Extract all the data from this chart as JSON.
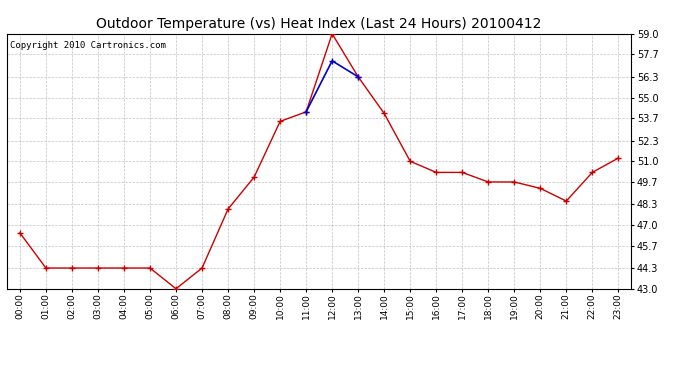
{
  "title": "Outdoor Temperature (vs) Heat Index (Last 24 Hours) 20100412",
  "copyright_text": "Copyright 2010 Cartronics.com",
  "x_labels": [
    "00:00",
    "01:00",
    "02:00",
    "03:00",
    "04:00",
    "05:00",
    "06:00",
    "07:00",
    "08:00",
    "09:00",
    "10:00",
    "11:00",
    "12:00",
    "13:00",
    "14:00",
    "15:00",
    "16:00",
    "17:00",
    "18:00",
    "19:00",
    "20:00",
    "21:00",
    "22:00",
    "23:00"
  ],
  "temp_values": [
    46.5,
    44.3,
    44.3,
    44.3,
    44.3,
    44.3,
    43.0,
    44.3,
    48.0,
    50.0,
    53.5,
    54.1,
    59.0,
    56.3,
    54.0,
    51.0,
    50.3,
    50.3,
    49.7,
    49.7,
    49.3,
    48.5,
    50.3,
    51.2
  ],
  "heat_values": [
    null,
    null,
    null,
    null,
    null,
    null,
    null,
    null,
    null,
    null,
    null,
    54.1,
    57.3,
    56.3,
    null,
    null,
    null,
    null,
    null,
    null,
    null,
    null,
    null,
    null
  ],
  "ylim_min": 43.0,
  "ylim_max": 59.0,
  "yticks": [
    43.0,
    44.3,
    45.7,
    47.0,
    48.3,
    49.7,
    51.0,
    52.3,
    53.7,
    55.0,
    56.3,
    57.7,
    59.0
  ],
  "temp_color": "#cc0000",
  "heat_color": "#0000cc",
  "bg_color": "#ffffff",
  "plot_bg_color": "#ffffff",
  "grid_color": "#aaaaaa",
  "title_fontsize": 10,
  "copyright_fontsize": 6.5
}
